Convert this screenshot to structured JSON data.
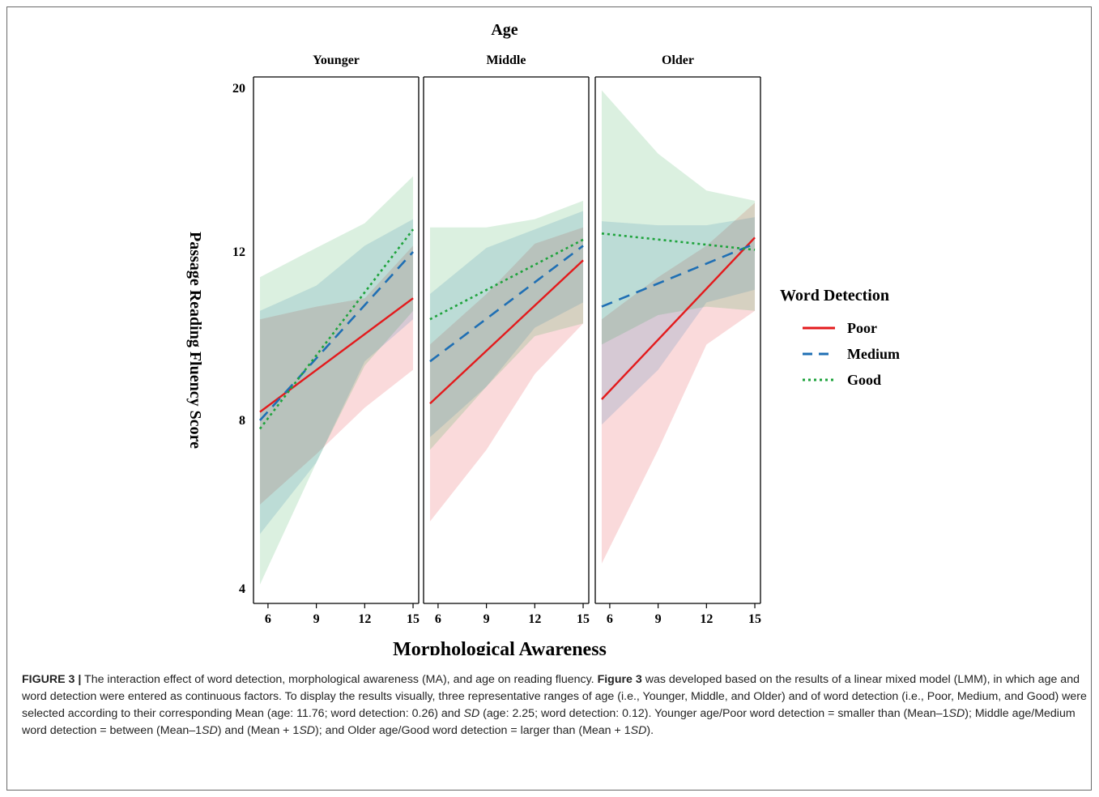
{
  "chart_data": {
    "type": "line",
    "facet_title": "Age",
    "xlabel": "Morphological Awareness",
    "ylabel": "Passage Reading Fluency Score",
    "xticks": [
      6,
      9,
      12,
      15
    ],
    "yticks": [
      4,
      8,
      12,
      20
    ],
    "legend": {
      "title": "Word Detection",
      "position": "right",
      "entries": [
        {
          "name": "Poor",
          "color": "#e31a1c",
          "style": "solid"
        },
        {
          "name": "Medium",
          "color": "#1f6fb4",
          "style": "dashed"
        },
        {
          "name": "Good",
          "color": "#1ea33c",
          "style": "dotted"
        }
      ]
    },
    "panels": [
      {
        "title": "Younger",
        "series": [
          {
            "name": "Poor",
            "x": [
              5.5,
              15
            ],
            "y": [
              8.2,
              10.9
            ],
            "band_x": [
              5.5,
              9,
              12,
              15
            ],
            "band_upper": [
              10.4,
              10.7,
              10.9,
              12.3
            ],
            "band_lower": [
              6.0,
              7.2,
              8.3,
              9.2
            ]
          },
          {
            "name": "Medium",
            "x": [
              5.5,
              15
            ],
            "y": [
              8.0,
              12.0
            ],
            "band_x": [
              5.5,
              9,
              12,
              15
            ],
            "band_upper": [
              10.6,
              11.2,
              12.3,
              13.6
            ],
            "band_lower": [
              5.3,
              7.0,
              9.4,
              10.4
            ]
          },
          {
            "name": "Good",
            "x": [
              5.5,
              15
            ],
            "y": [
              7.8,
              13.1
            ],
            "band_x": [
              5.5,
              9,
              12,
              15
            ],
            "band_upper": [
              11.4,
              12.2,
              13.4,
              15.7
            ],
            "band_lower": [
              4.1,
              7.0,
              9.3,
              10.6
            ]
          }
        ]
      },
      {
        "title": "Middle",
        "series": [
          {
            "name": "Poor",
            "x": [
              5.5,
              15
            ],
            "y": [
              8.4,
              11.8
            ],
            "band_x": [
              5.5,
              9,
              12,
              15
            ],
            "band_upper": [
              9.8,
              11.0,
              12.4,
              13.2
            ],
            "band_lower": [
              5.6,
              7.3,
              9.1,
              10.3
            ]
          },
          {
            "name": "Medium",
            "x": [
              5.5,
              15
            ],
            "y": [
              9.4,
              12.3
            ],
            "band_x": [
              5.5,
              9,
              12,
              15
            ],
            "band_upper": [
              11.0,
              12.2,
              13.1,
              14.0
            ],
            "band_lower": [
              7.6,
              8.8,
              10.2,
              10.8
            ]
          },
          {
            "name": "Good",
            "x": [
              5.5,
              15
            ],
            "y": [
              10.4,
              12.6
            ],
            "band_x": [
              5.5,
              9,
              12,
              15
            ],
            "band_upper": [
              13.2,
              13.2,
              13.6,
              14.5
            ],
            "band_lower": [
              7.3,
              8.8,
              10.0,
              10.3
            ]
          }
        ]
      },
      {
        "title": "Older",
        "series": [
          {
            "name": "Poor",
            "x": [
              5.5,
              15
            ],
            "y": [
              8.5,
              12.7
            ],
            "band_x": [
              5.5,
              9,
              12,
              15
            ],
            "band_upper": [
              10.4,
              11.4,
              12.3,
              14.4
            ],
            "band_lower": [
              4.6,
              7.3,
              9.8,
              10.6
            ]
          },
          {
            "name": "Medium",
            "x": [
              5.5,
              15
            ],
            "y": [
              10.7,
              12.4
            ],
            "band_x": [
              5.5,
              9,
              12,
              15
            ],
            "band_upper": [
              13.5,
              13.3,
              13.3,
              13.7
            ],
            "band_lower": [
              7.9,
              9.2,
              10.8,
              11.1
            ]
          },
          {
            "name": "Good",
            "x": [
              5.5,
              15
            ],
            "y": [
              12.9,
              12.1
            ],
            "band_x": [
              5.5,
              9,
              12,
              15
            ],
            "band_upper": [
              19.9,
              16.8,
              15.0,
              14.5
            ],
            "band_lower": [
              9.8,
              10.5,
              10.7,
              10.6
            ]
          }
        ]
      }
    ]
  },
  "caption": {
    "label": "FIGURE 3 |",
    "ref": "Figure 3",
    "part1": " The interaction effect of word detection, morphological awareness (MA), and age on reading fluency. ",
    "part2": " was developed based on the results of a linear mixed model (LMM), in which age and word detection were entered as continuous factors. To display the results visually, three representative ranges of age (i.e., Younger, Middle, and Older) and of word detection (i.e., Poor, Medium, and Good) were selected according to their corresponding Mean (age: 11.76; word detection: 0.26) and ",
    "sd": "SD",
    "part3": " (age: 2.25; word detection: 0.12). Younger age/Poor word detection = smaller than (Mean–1",
    "part4": "); Middle age/Medium word detection = between (Mean–1",
    "part5": ") and (Mean + 1",
    "part6": "); and Older age/Good word detection = larger than (Mean + 1",
    "part7": ")."
  }
}
